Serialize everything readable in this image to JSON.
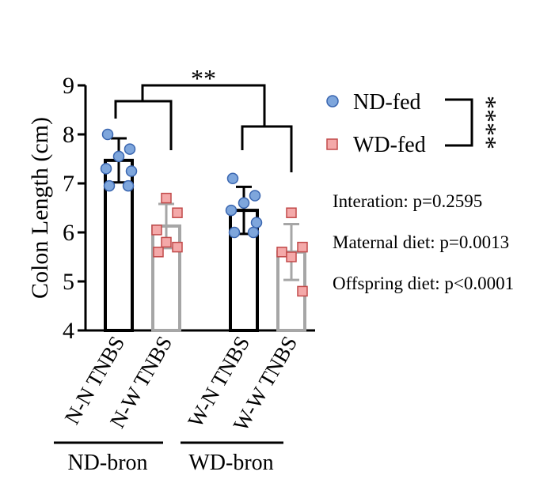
{
  "chart_data": {
    "type": "bar",
    "ylabel": "Colon Length (cm)",
    "ylim": [
      4,
      9
    ],
    "yticks": [
      4,
      5,
      6,
      7,
      8,
      9
    ],
    "categories": [
      "N-N TNBS",
      "N-W TNBS",
      "W-N TNBS",
      "W-W TNBS"
    ],
    "bars": [
      {
        "category": "N-N TNBS",
        "mean": 7.47,
        "sd": 0.45,
        "bar_color": "#000000",
        "marker": "circle",
        "points": [
          8.0,
          7.7,
          7.55,
          7.3,
          7.25,
          6.95,
          6.95
        ]
      },
      {
        "category": "N-W TNBS",
        "mean": 6.13,
        "sd": 0.45,
        "bar_color": "#a6a6a6",
        "marker": "square",
        "points": [
          6.7,
          6.4,
          6.05,
          5.8,
          5.7,
          5.6
        ]
      },
      {
        "category": "W-N TNBS",
        "mean": 6.45,
        "sd": 0.48,
        "bar_color": "#000000",
        "marker": "circle",
        "points": [
          7.1,
          6.75,
          6.6,
          6.45,
          6.2,
          6.0,
          6.0
        ]
      },
      {
        "category": "W-W TNBS",
        "mean": 5.6,
        "sd": 0.57,
        "bar_color": "#a6a6a6",
        "marker": "square",
        "points": [
          6.4,
          5.7,
          5.6,
          5.5,
          4.8
        ]
      }
    ],
    "groups": [
      {
        "label": "ND-bron",
        "categories": [
          "N-N TNBS",
          "N-W TNBS"
        ]
      },
      {
        "label": "WD-bron",
        "categories": [
          "W-N TNBS",
          "W-W TNBS"
        ]
      }
    ],
    "significance": {
      "maternal_bracket": "**",
      "offspring_bracket": "****"
    },
    "legend": {
      "position": "right",
      "items": [
        {
          "label": "ND-fed",
          "marker": "circle",
          "fill": "#7ea6dc"
        },
        {
          "label": "WD-fed",
          "marker": "square",
          "fill": "#f4a9a9"
        }
      ]
    },
    "annotations": [
      "Interation: p=0.2595",
      "Maternal diet: p=0.0013",
      "Offspring diet: p<0.0001"
    ],
    "colors": {
      "circle_fill": "#7ea6dc",
      "circle_stroke": "#3a66b0",
      "square_fill": "#f4a9a9",
      "square_stroke": "#c24a4a",
      "black_bar": "#000000",
      "gray_bar": "#a6a6a6"
    }
  }
}
